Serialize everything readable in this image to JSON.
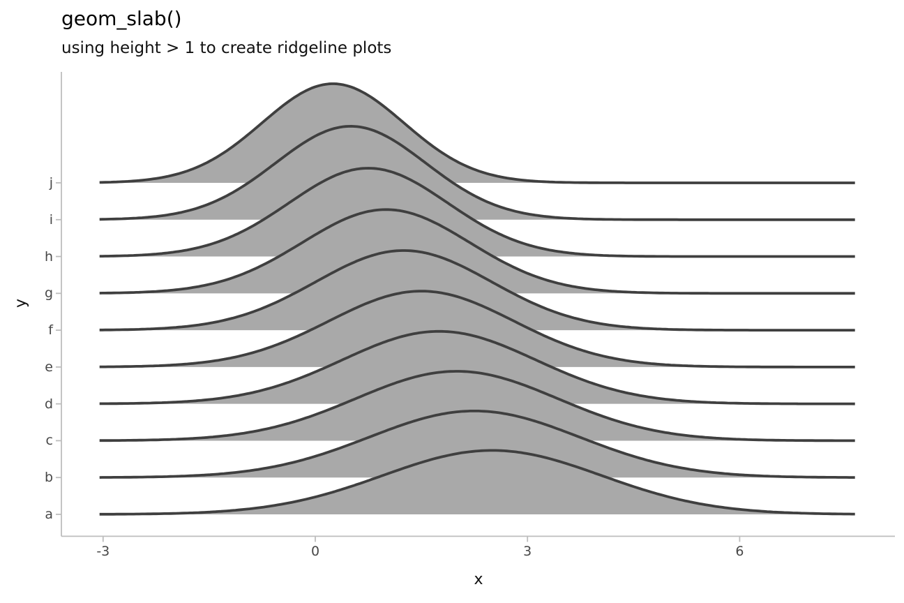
{
  "title": "geom_slab()",
  "subtitle": "using height > 1 to create ridgeline plots",
  "axes": {
    "x": {
      "title": "x",
      "ticks": [
        {
          "label": "-3",
          "value": -3
        },
        {
          "label": "0",
          "value": 0
        },
        {
          "label": "3",
          "value": 3
        },
        {
          "label": "6",
          "value": 6
        }
      ]
    },
    "y": {
      "title": "y",
      "categories_bottom_to_top": [
        "a",
        "b",
        "c",
        "d",
        "e",
        "f",
        "g",
        "h",
        "i",
        "j"
      ]
    }
  },
  "chart_data": {
    "type": "area",
    "subtype": "ridgeline-normal-densities",
    "title": "geom_slab()",
    "subtitle": "using height > 1 to create ridgeline plots",
    "xlabel": "x",
    "ylabel": "y",
    "x_range": [
      -3.05,
      7.63
    ],
    "x_tick_values": [
      -3,
      0,
      3,
      6
    ],
    "grid": false,
    "legend": false,
    "row_order_bottom_to_top": [
      "a",
      "b",
      "c",
      "d",
      "e",
      "f",
      "g",
      "h",
      "i",
      "j"
    ],
    "ridge_overlap_rows": 2.69,
    "series": [
      {
        "label": "a",
        "mean": 2.5,
        "sd": 1.55,
        "peak_height_rows": 1.74
      },
      {
        "label": "b",
        "mean": 2.25,
        "sd": 1.489,
        "peak_height_rows": 1.81
      },
      {
        "label": "c",
        "mean": 2.0,
        "sd": 1.428,
        "peak_height_rows": 1.88
      },
      {
        "label": "d",
        "mean": 1.75,
        "sd": 1.367,
        "peak_height_rows": 1.97
      },
      {
        "label": "e",
        "mean": 1.5,
        "sd": 1.306,
        "peak_height_rows": 2.06
      },
      {
        "label": "f",
        "mean": 1.25,
        "sd": 1.244,
        "peak_height_rows": 2.16
      },
      {
        "label": "g",
        "mean": 1.0,
        "sd": 1.183,
        "peak_height_rows": 2.27
      },
      {
        "label": "h",
        "mean": 0.75,
        "sd": 1.122,
        "peak_height_rows": 2.4
      },
      {
        "label": "i",
        "mean": 0.5,
        "sd": 1.061,
        "peak_height_rows": 2.54
      },
      {
        "label": "j",
        "mean": 0.25,
        "sd": 1.0,
        "peak_height_rows": 2.69
      }
    ]
  },
  "style": {
    "ridge_fill": "#A9A9A9",
    "ridge_stroke": "#3F3F3F",
    "axis_line_color": "#BDBDBD",
    "tick_label_color": "#474747",
    "title_color": "#000000",
    "background": "#FFFFFF"
  }
}
